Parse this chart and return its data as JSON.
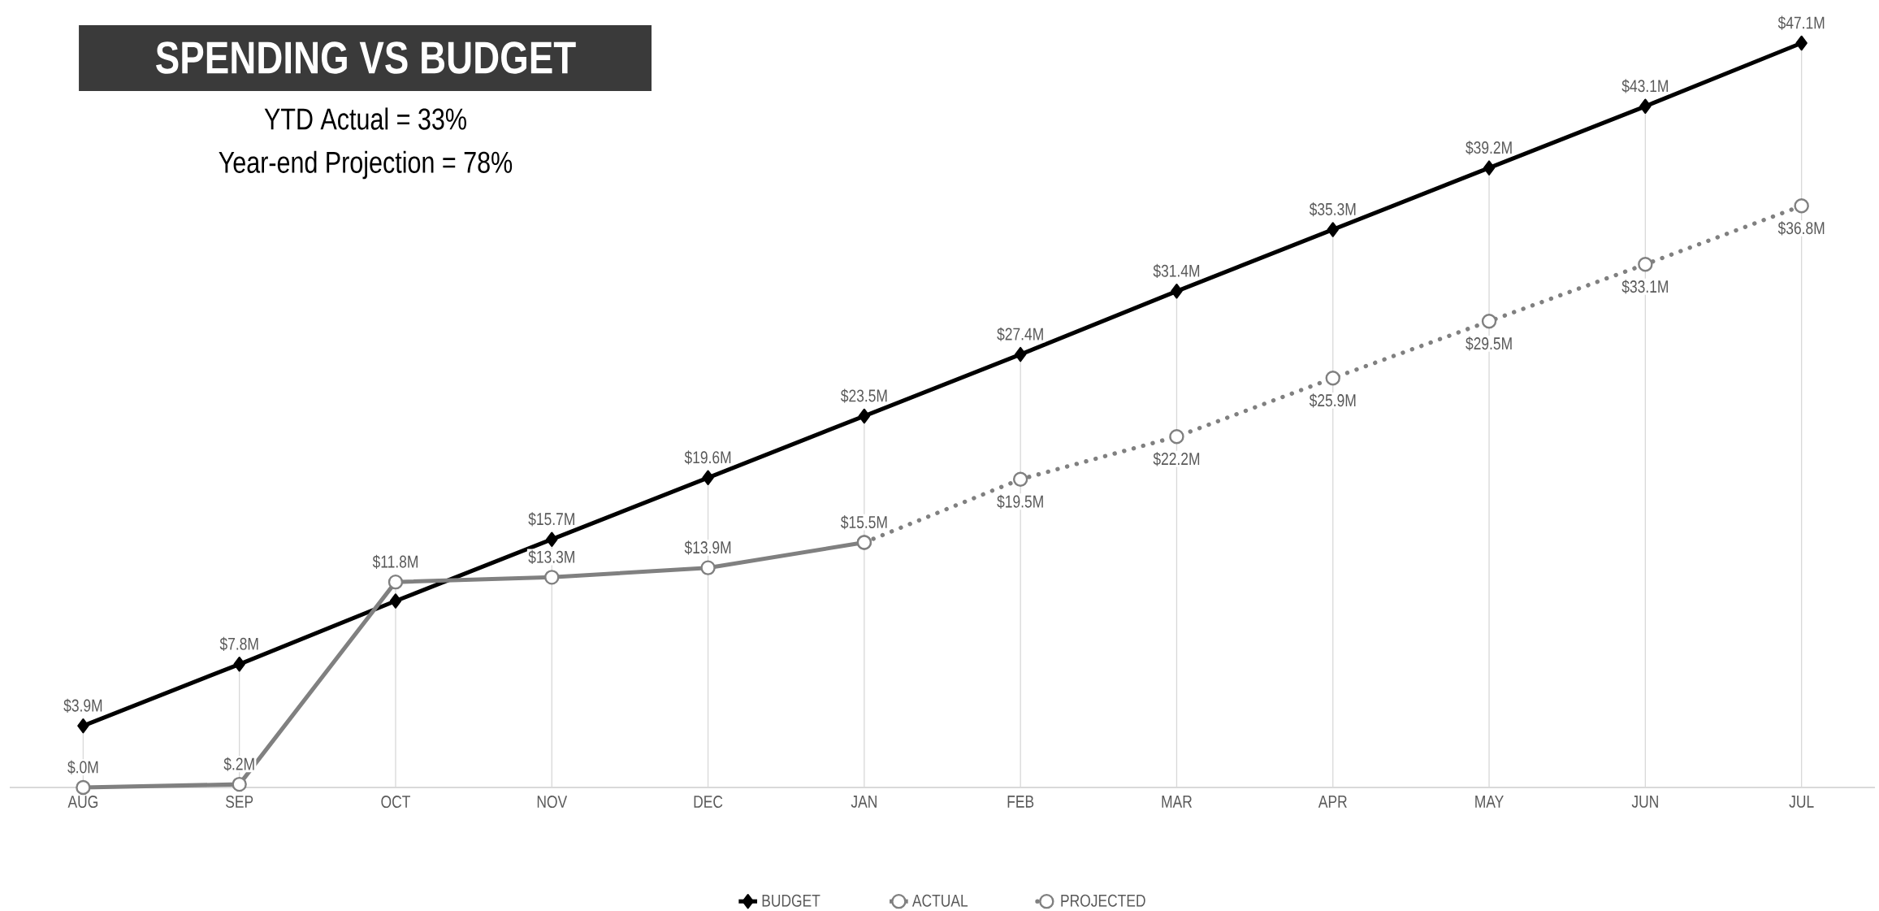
{
  "chart_data": {
    "type": "line",
    "title": "SPENDING VS BUDGET",
    "annotations": [
      "YTD Actual = 33%",
      "Year-end Projection = 78%"
    ],
    "categories": [
      "AUG",
      "SEP",
      "OCT",
      "NOV",
      "DEC",
      "JAN",
      "FEB",
      "MAR",
      "APR",
      "MAY",
      "JUN",
      "JUL"
    ],
    "series": [
      {
        "name": "BUDGET",
        "color": "#000000",
        "marker": "diamond",
        "line_style": "solid",
        "values": [
          3.9,
          7.8,
          11.8,
          15.7,
          19.6,
          23.5,
          27.4,
          31.4,
          35.3,
          39.2,
          43.1,
          47.1
        ],
        "value_labels": [
          "$3.9M",
          "$7.8M",
          "$11.8M",
          "$15.7M",
          "$19.6M",
          "$23.5M",
          "$27.4M",
          "$31.4M",
          "$35.3M",
          "$39.2M",
          "$43.1M",
          "$47.1M"
        ]
      },
      {
        "name": "ACTUAL",
        "color": "#808080",
        "marker": "circle",
        "line_style": "solid",
        "values": [
          0,
          0.2,
          13.0,
          13.3,
          13.9,
          15.5,
          null,
          null,
          null,
          null,
          null,
          null
        ],
        "value_labels": [
          "$.0M",
          "$.2M",
          null,
          "$13.3M",
          "$13.9M",
          "$15.5M",
          null,
          null,
          null,
          null,
          null,
          null
        ]
      },
      {
        "name": "PROJECTED",
        "color": "#808080",
        "marker": "circle",
        "line_style": "dotted",
        "values": [
          null,
          null,
          null,
          null,
          null,
          15.5,
          19.5,
          22.2,
          25.9,
          29.5,
          33.1,
          36.8
        ],
        "value_labels": [
          null,
          null,
          null,
          null,
          null,
          null,
          "$19.5M",
          "$22.2M",
          "$25.9M",
          "$29.5M",
          "$33.1M",
          "$36.8M"
        ]
      }
    ],
    "ylim": [
      0,
      47.1
    ],
    "tick_labels": "x",
    "grid": "x",
    "legend": "bottom"
  }
}
